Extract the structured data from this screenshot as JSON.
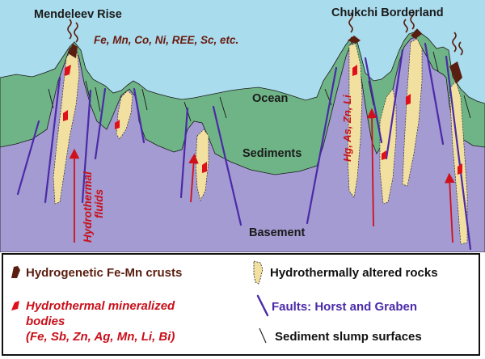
{
  "diagram": {
    "labels": {
      "mendeleev_rise": "Mendeleev Rise",
      "chukchi_borderland": "Chukchi Borderland",
      "elements": "Fe, Mn, Co, Ni, REE, Sc, etc.",
      "ocean": "Ocean",
      "sediments": "Sediments",
      "basement": "Basement",
      "hydrothermal_fluids_line1": "Hydrothermal",
      "hydrothermal_fluids_line2": "fluids",
      "trace_elements": "Hg, As, Zn, Li"
    },
    "colors": {
      "ocean": "#a9dced",
      "sediment": "#6fb487",
      "basement": "#a39bd1",
      "fe_mn_crust": "#5a1e10",
      "mineralized_body": "#e0101a",
      "altered_rock": "#f2e0a0",
      "fault": "#4b2aa8",
      "arrow": "#d0101a"
    }
  },
  "legend": {
    "crusts": "Hydrogenetic Fe-Mn crusts",
    "mineralized_line1": "Hydrothermal mineralized",
    "mineralized_line2": "bodies",
    "mineralized_line3": "(Fe, Sb, Zn, Ag, Mn, Li, Bi)",
    "altered_rocks": "Hydrothermally altered rocks",
    "faults": "Faults: Horst and Graben",
    "slump": "Sediment slump surfaces"
  }
}
